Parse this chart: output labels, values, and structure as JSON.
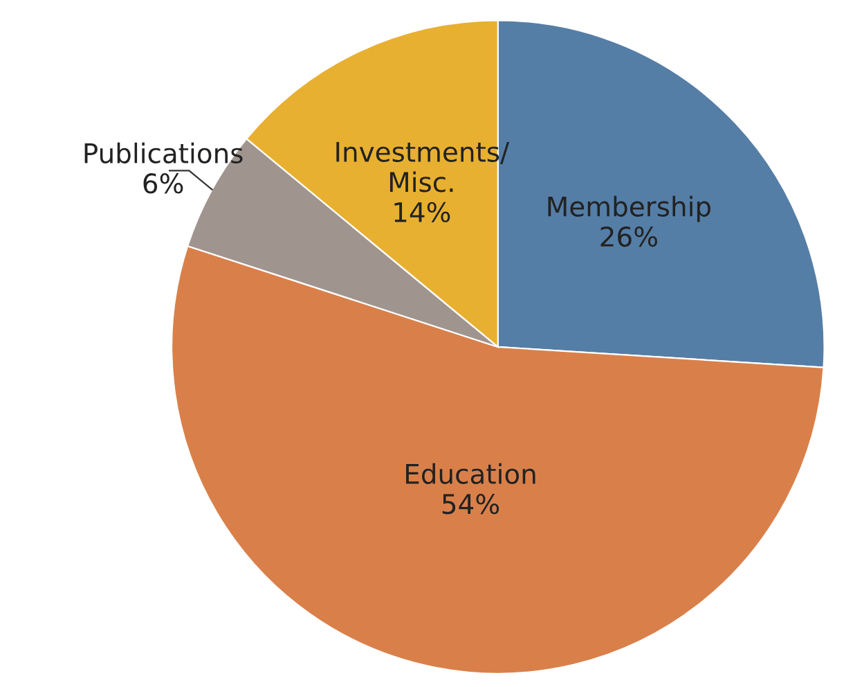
{
  "chart_data": {
    "type": "pie",
    "categories": [
      "Membership",
      "Education",
      "Publications",
      "Investments/\nMisc."
    ],
    "values": [
      26,
      54,
      6,
      14
    ],
    "value_labels": [
      "26%",
      "54%",
      "6%",
      "14%"
    ],
    "colors": [
      "#557ea6",
      "#d9804a",
      "#a0948f",
      "#e8b030"
    ],
    "legend": false
  }
}
